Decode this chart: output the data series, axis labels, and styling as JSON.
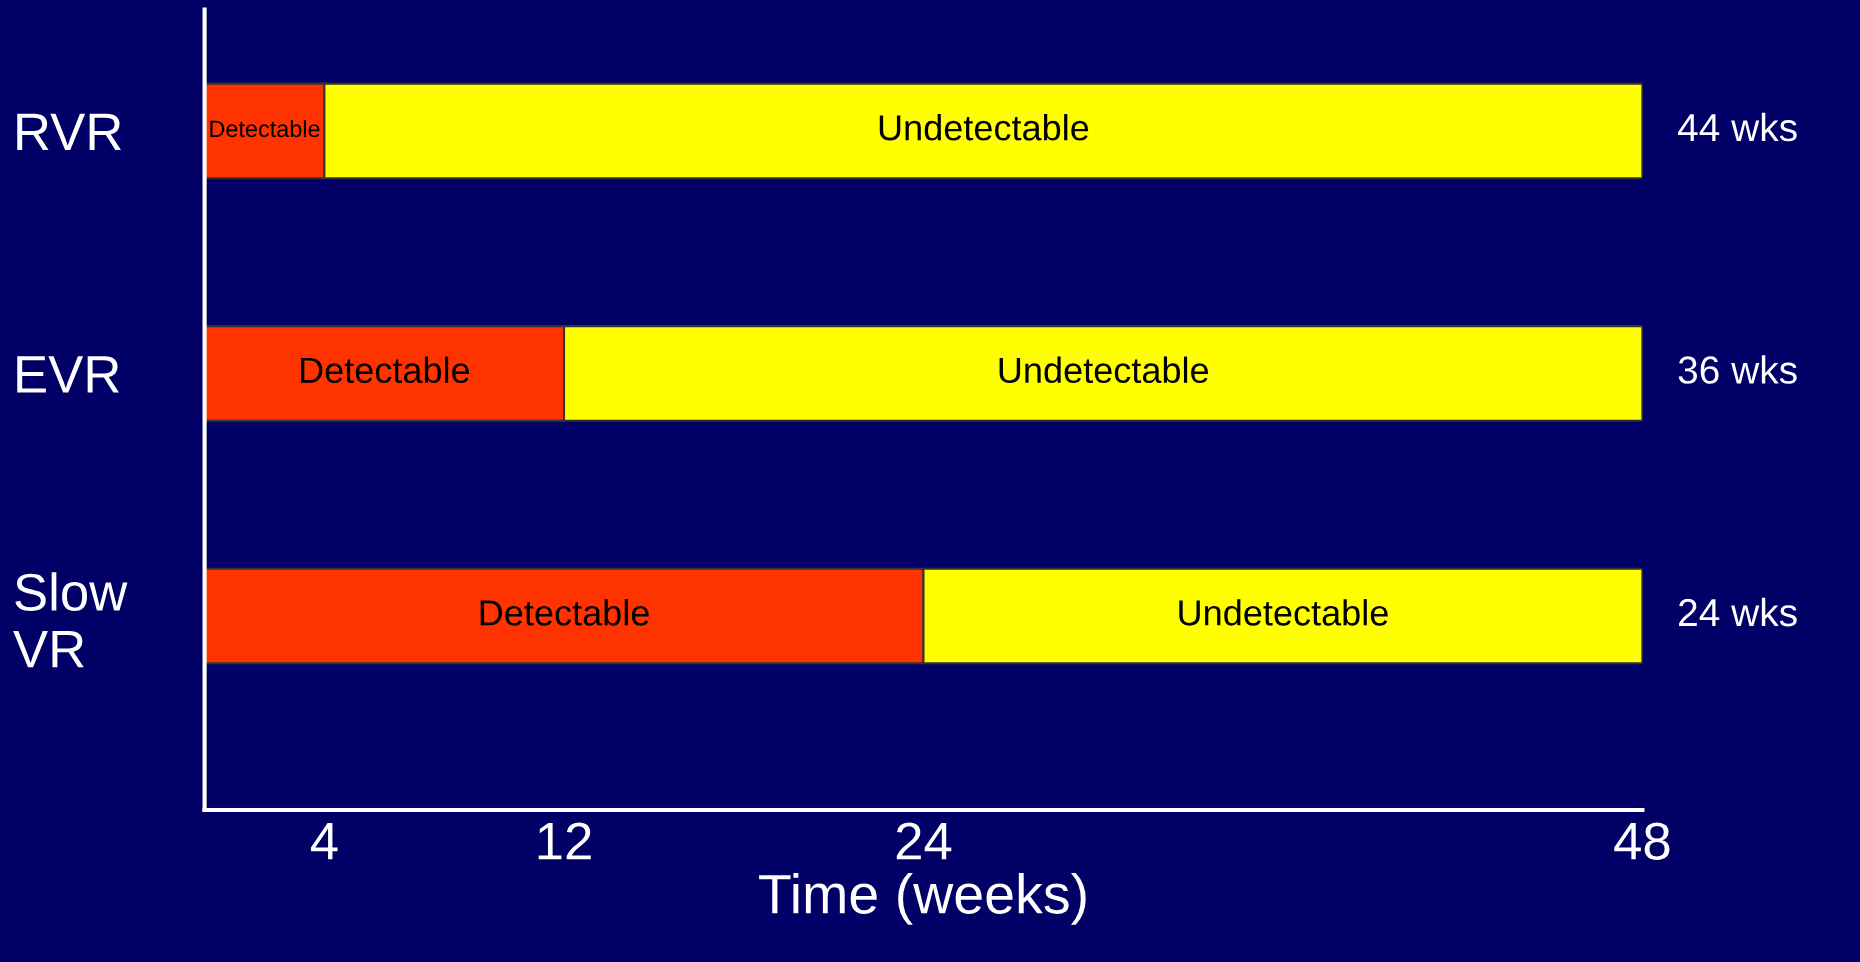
{
  "chart_data": {
    "type": "bar",
    "orientation": "horizontal",
    "stacked": true,
    "categories": [
      "RVR",
      "EVR",
      "Slow\nVR"
    ],
    "series": [
      {
        "name": "Detectable",
        "color": "#ff3300",
        "values": [
          4,
          12,
          24
        ]
      },
      {
        "name": "Undetectable",
        "color": "#ffff00",
        "values": [
          44,
          36,
          24
        ],
        "value_labels": [
          "44 wks",
          "36 wks",
          "24 wks"
        ]
      }
    ],
    "xlabel": "Time (weeks)",
    "xlim": [
      0,
      48
    ],
    "xticks": [
      4,
      12,
      24,
      48
    ],
    "grid": false,
    "legend": false
  }
}
